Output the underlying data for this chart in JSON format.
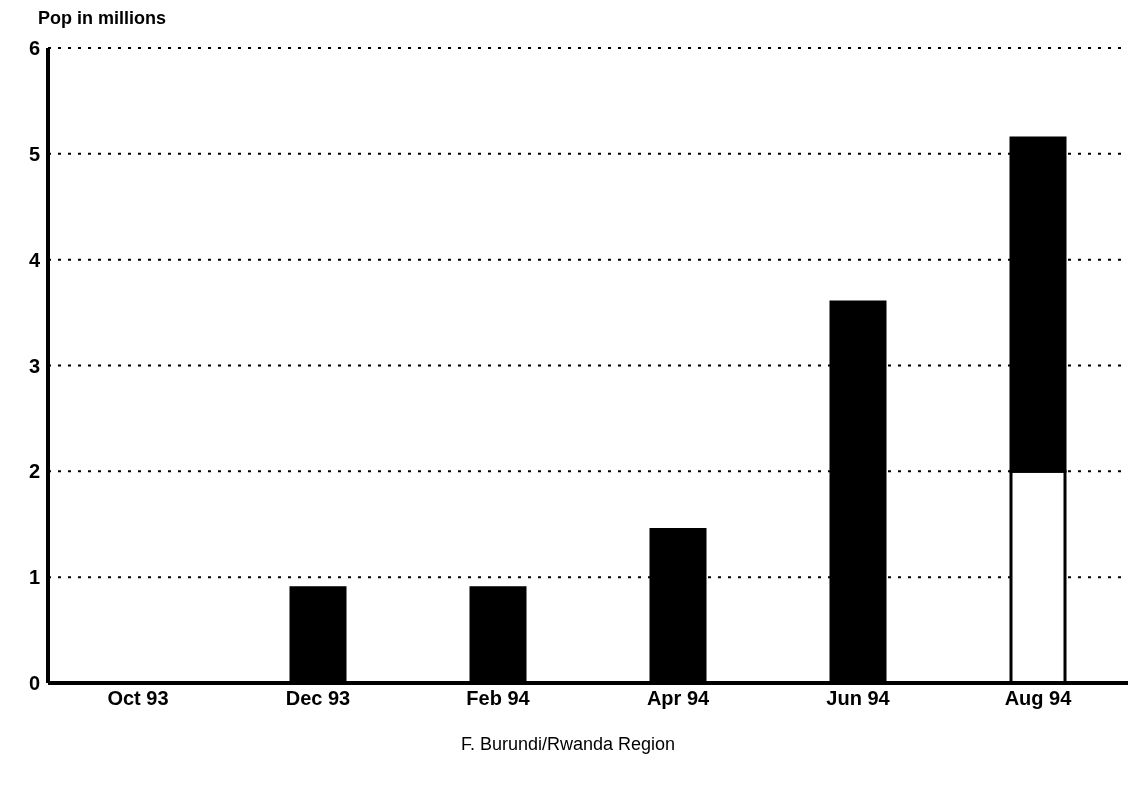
{
  "chart_data": {
    "type": "bar",
    "ylabel": "Pop in millions",
    "categories": [
      "Oct 93",
      "Dec 93",
      "Feb 94",
      "Apr 94",
      "Jun 94",
      "Aug 94"
    ],
    "stacked": true,
    "series": [
      {
        "color": "#ffffff",
        "values": [
          null,
          null,
          null,
          null,
          null,
          2
        ]
      },
      {
        "color": "#000000",
        "values": [
          0,
          0.9,
          0.9,
          1.45,
          3.6,
          3.15
        ]
      }
    ],
    "ylim": [
      0,
      6
    ],
    "yticks": [
      0,
      1,
      2,
      3,
      4,
      5,
      6
    ],
    "grid": "y",
    "legend": false,
    "annotations": [
      "F. Burundi/Rwanda Region"
    ]
  }
}
